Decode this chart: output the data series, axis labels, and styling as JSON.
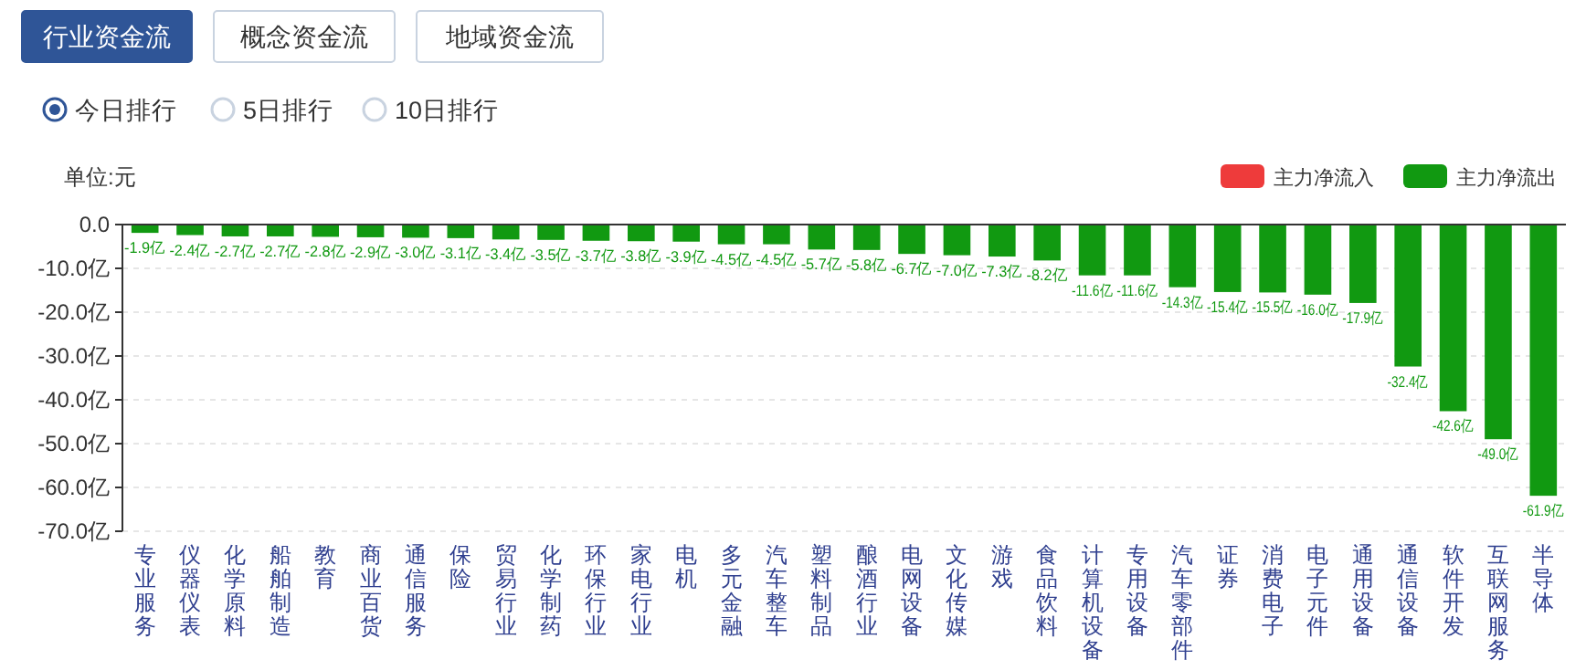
{
  "chart_data": {
    "type": "bar",
    "ylabel": "单位:元",
    "annotations": [
      "行业资金流",
      "概念资金流",
      "地域资金流",
      "今日排行",
      "5日排行",
      "10日排行"
    ],
    "categories": [
      "专业服务",
      "仪器仪表",
      "化学原料",
      "船舶制造",
      "教育",
      "商业百货",
      "通信服务",
      "保险",
      "贸易行业",
      "化学制药",
      "环保行业",
      "家电行业",
      "电机",
      "多元金融",
      "汽车整车",
      "塑料制品",
      "酿酒行业",
      "电网设备",
      "文化传媒",
      "游戏",
      "食品饮料",
      "计算机设备",
      "专用设备",
      "汽车零部件",
      "证券",
      "消费电子",
      "电子元件",
      "通用设备",
      "通信设备",
      "软件开发",
      "互联网服务",
      "半导体"
    ],
    "series": [
      {
        "name": "主力净流入",
        "color": "#ee3b3b",
        "values": [
          null,
          null,
          null,
          null,
          null,
          null,
          null,
          null,
          null,
          null,
          null,
          null,
          null,
          null,
          null,
          null,
          null,
          null,
          null,
          null,
          null,
          null,
          null,
          null,
          null,
          null,
          null,
          null,
          null,
          null,
          null,
          null
        ]
      },
      {
        "name": "主力净流出",
        "color": "#119911",
        "values": [
          -1.9,
          -2.4,
          -2.7,
          -2.7,
          -2.8,
          -2.9,
          -3.0,
          -3.1,
          -3.4,
          -3.5,
          -3.7,
          -3.8,
          -3.9,
          -4.5,
          -4.5,
          -5.7,
          -5.8,
          -6.7,
          -7.0,
          -7.3,
          -8.2,
          -11.6,
          -11.6,
          -14.3,
          -15.4,
          -15.5,
          -16.0,
          -17.9,
          -32.4,
          -42.6,
          -49.0,
          -61.9
        ],
        "value_labels": [
          "-1.9亿",
          "-2.4亿",
          "-2.7亿",
          "-2.7亿",
          "-2.8亿",
          "-2.9亿",
          "-3.0亿",
          "-3.1亿",
          "-3.4亿",
          "-3.5亿",
          "-3.7亿",
          "-3.8亿",
          "-3.9亿",
          "-4.5亿",
          "-4.5亿",
          "-5.7亿",
          "-5.8亿",
          "-6.7亿",
          "-7.0亿",
          "-7.3亿",
          "-8.2亿",
          "-11.6亿",
          "-11.6亿",
          "-14.3亿",
          "-15.4亿",
          "-15.5亿",
          "-16.0亿",
          "-17.9亿",
          "-32.4亿",
          "-42.6亿",
          "-49.0亿",
          "-61.9亿"
        ]
      }
    ],
    "ylim": [
      -70,
      0
    ],
    "yticks": [
      {
        "value": 0,
        "label": "0.0"
      },
      {
        "value": -10,
        "label": "-10.0亿"
      },
      {
        "value": -20,
        "label": "-20.0亿"
      },
      {
        "value": -30,
        "label": "-30.0亿"
      },
      {
        "value": -40,
        "label": "-40.0亿"
      },
      {
        "value": -50,
        "label": "-50.0亿"
      },
      {
        "value": -60,
        "label": "-60.0亿"
      },
      {
        "value": -70,
        "label": "-70.0亿"
      }
    ],
    "grid": "y",
    "legend": "top right"
  }
}
